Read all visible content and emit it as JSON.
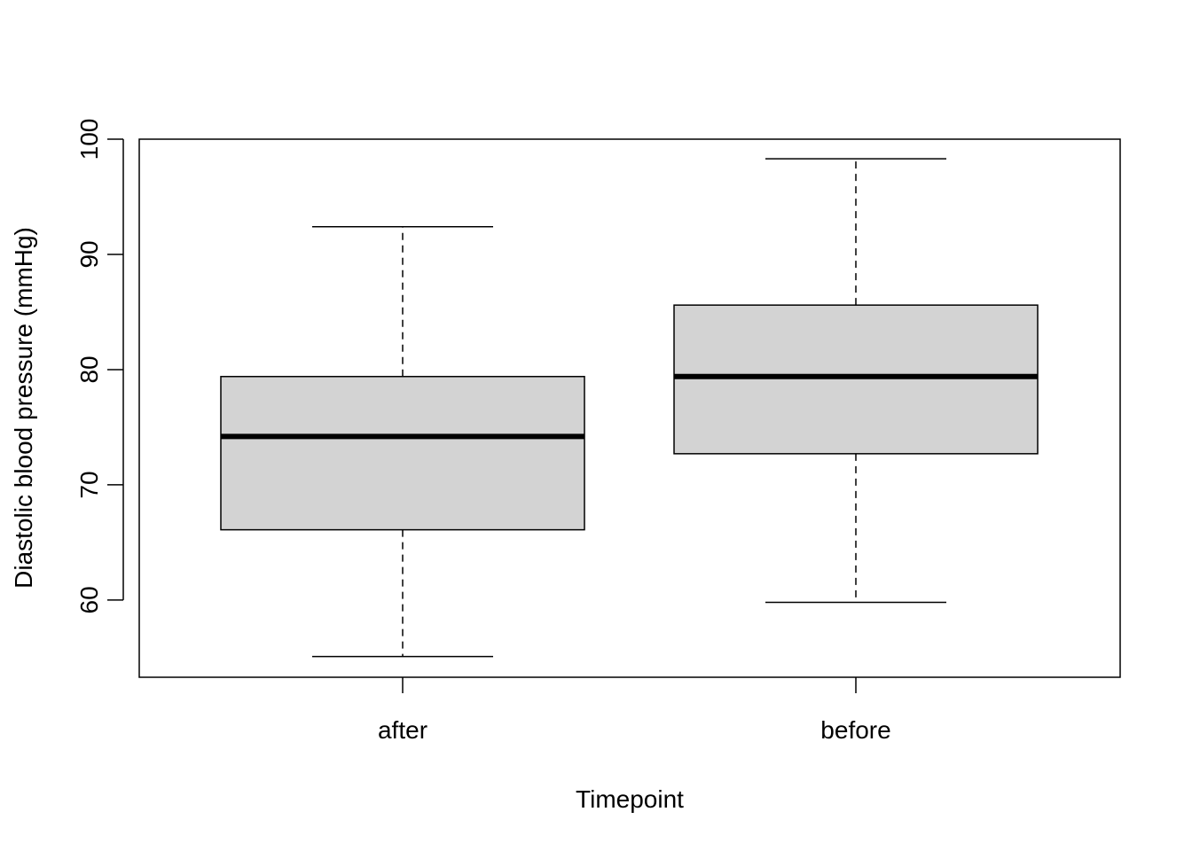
{
  "chart_data": {
    "type": "boxplot",
    "xlabel": "Timepoint",
    "ylabel": "Diastolic blood pressure (mmHg)",
    "ylim": [
      53.3,
      100.0
    ],
    "yticks": [
      60,
      70,
      80,
      90,
      100
    ],
    "grid": false,
    "box_fill": "#d3d3d3",
    "categories": [
      "after",
      "before"
    ],
    "boxes": [
      {
        "category": "after",
        "whisker_low": 55.1,
        "q1": 66.1,
        "median": 74.2,
        "q3": 79.4,
        "whisker_high": 92.4
      },
      {
        "category": "before",
        "whisker_low": 59.8,
        "q1": 72.7,
        "median": 79.4,
        "q3": 85.6,
        "whisker_high": 98.3
      }
    ]
  }
}
